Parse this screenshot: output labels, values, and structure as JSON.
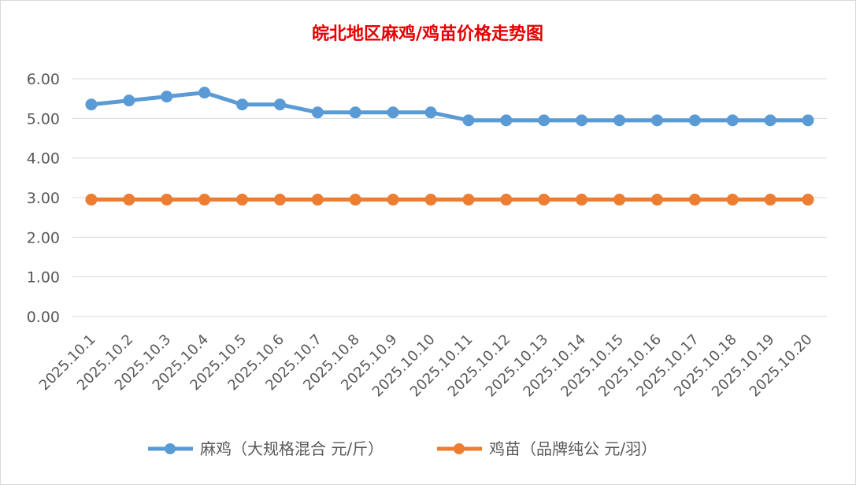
{
  "chart_data": {
    "type": "line",
    "title": "皖北地区麻鸡/鸡苗价格走势图",
    "xlabel": "",
    "ylabel": "",
    "categories": [
      "2025.10.1",
      "2025.10.2",
      "2025.10.3",
      "2025.10.4",
      "2025.10.5",
      "2025.10.6",
      "2025.10.7",
      "2025.10.8",
      "2025.10.9",
      "2025.10.10",
      "2025.10.11",
      "2025.10.12",
      "2025.10.13",
      "2025.10.14",
      "2025.10.15",
      "2025.10.16",
      "2025.10.17",
      "2025.10.18",
      "2025.10.19",
      "2025.10.20"
    ],
    "y_ticks": [
      "0.00",
      "1.00",
      "2.00",
      "3.00",
      "4.00",
      "5.00",
      "6.00"
    ],
    "ylim": [
      0,
      6
    ],
    "grid": true,
    "legend_position": "bottom",
    "series": [
      {
        "name": "麻鸡（大规格混合 元/斤）",
        "color": "#5b9bd5",
        "values": [
          5.35,
          5.45,
          5.55,
          5.65,
          5.35,
          5.35,
          5.15,
          5.15,
          5.15,
          5.15,
          4.95,
          4.95,
          4.95,
          4.95,
          4.95,
          4.95,
          4.95,
          4.95,
          4.95,
          4.95
        ]
      },
      {
        "name": "鸡苗（品牌纯公 元/羽）",
        "color": "#ed7d31",
        "values": [
          2.95,
          2.95,
          2.95,
          2.95,
          2.95,
          2.95,
          2.95,
          2.95,
          2.95,
          2.95,
          2.95,
          2.95,
          2.95,
          2.95,
          2.95,
          2.95,
          2.95,
          2.95,
          2.95,
          2.95
        ]
      }
    ]
  }
}
